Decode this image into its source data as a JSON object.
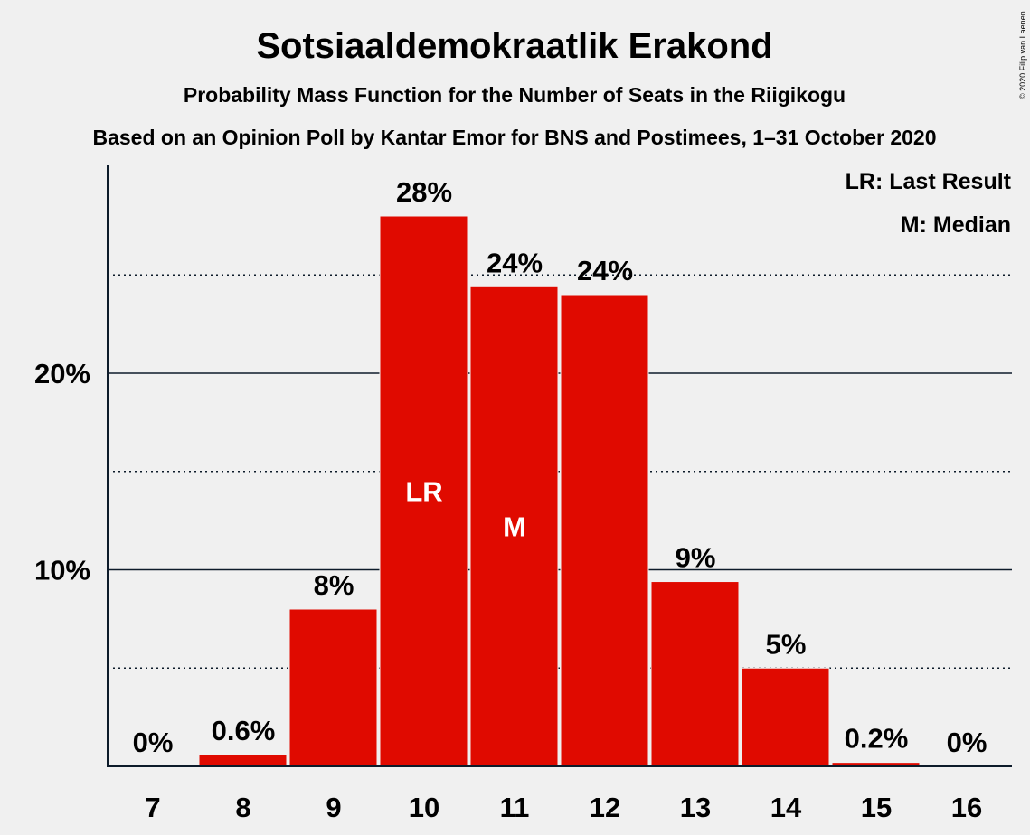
{
  "chart_data": {
    "type": "bar",
    "title": "Sotsiaaldemokraatlik Erakond",
    "subtitle": "Probability Mass Function for the Number of Seats in the Riigikogu",
    "subtitle2": "Based on an Opinion Poll by Kantar Emor for BNS and Postimees, 1–31 October 2020",
    "copyright": "© 2020 Filip van Laenen",
    "categories": [
      "7",
      "8",
      "9",
      "10",
      "11",
      "12",
      "13",
      "14",
      "15",
      "16"
    ],
    "values": [
      0,
      0.6,
      8,
      28,
      24.4,
      24,
      9.4,
      5,
      0.2,
      0
    ],
    "value_labels": [
      "0%",
      "0.6%",
      "8%",
      "28%",
      "24%",
      "24%",
      "9%",
      "5%",
      "0.2%",
      "0%"
    ],
    "bar_markers": {
      "10": "LR",
      "11": "M"
    },
    "ylim": [
      0,
      30.5
    ],
    "y_ticks": [
      10,
      20
    ],
    "y_tick_labels": [
      "10%",
      "20%"
    ],
    "minor_gridlines": [
      5,
      15,
      25
    ],
    "legend_position": "top-right",
    "legend": [
      "LR: Last Result",
      "M: Median"
    ],
    "bar_color": "#e00a00",
    "grid": true
  }
}
